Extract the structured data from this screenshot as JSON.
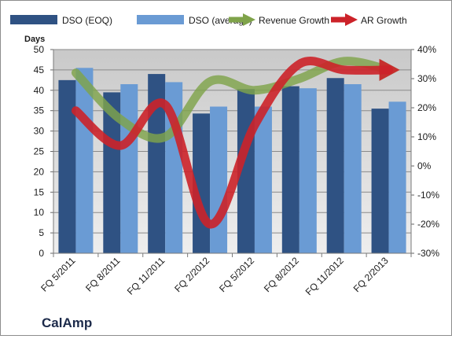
{
  "chart_data": {
    "type": "bar",
    "watermark": "CalAmp",
    "ylabel_left": "Days",
    "categories": [
      "FQ 5/2011",
      "FQ 8/2011",
      "FQ 11/2011",
      "FQ 2/2012",
      "FQ 5/2012",
      "FQ 8/2012",
      "FQ 11/2012",
      "FQ 2/2013"
    ],
    "left_axis": {
      "ylim": [
        0,
        50
      ],
      "ticks": [
        "0",
        "5",
        "10",
        "15",
        "20",
        "25",
        "30",
        "35",
        "40",
        "45",
        "50"
      ]
    },
    "right_axis": {
      "ylim": [
        -30,
        40
      ],
      "ticks": [
        "-30%",
        "-20%",
        "-10%",
        "0%",
        "10%",
        "20%",
        "30%",
        "40%"
      ]
    },
    "bar_series": [
      {
        "name": "DSO (EOQ)",
        "color": "#2f5283",
        "values": [
          42.5,
          39.5,
          44,
          34.3,
          40.3,
          41,
          43,
          35.5
        ]
      },
      {
        "name": "DSO (average)",
        "color": "#6a9bd4",
        "values": [
          45.5,
          41.5,
          42,
          36,
          36,
          40.5,
          41.5,
          37.2
        ]
      }
    ],
    "line_series": [
      {
        "name": "Revenue Growth",
        "color": "#7fa34a",
        "axis": "right",
        "values": [
          32,
          16,
          10,
          29,
          26,
          30,
          36,
          33
        ]
      },
      {
        "name": "AR Growth",
        "color": "#cc2229",
        "axis": "right",
        "values": [
          19,
          7,
          21,
          -20,
          14,
          35,
          33,
          33
        ]
      }
    ],
    "grid": true,
    "legend_position": "top"
  }
}
